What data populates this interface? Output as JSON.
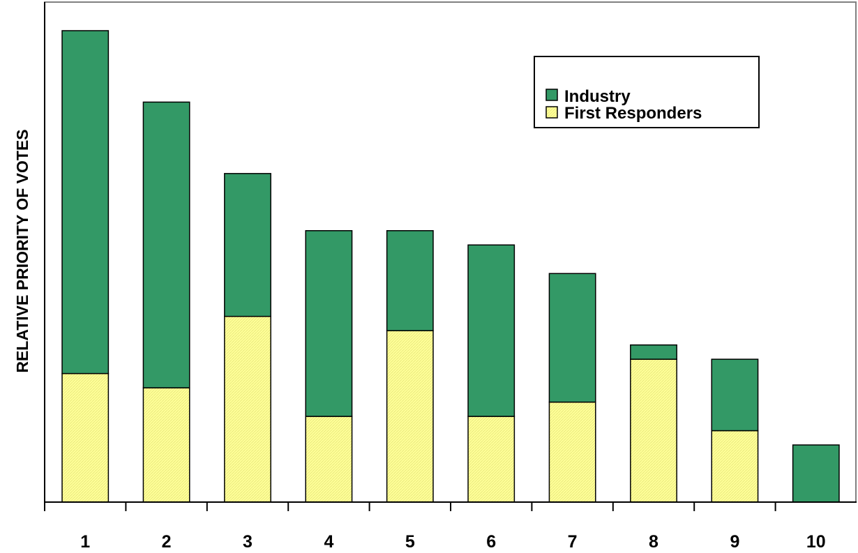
{
  "chart_data": {
    "type": "bar",
    "stacked": true,
    "title": "",
    "xlabel": "",
    "ylabel": "RELATIVE PRIORITY OF VOTES",
    "categories": [
      "1",
      "2",
      "3",
      "4",
      "5",
      "6",
      "7",
      "8",
      "9",
      "10"
    ],
    "series": [
      {
        "name": "First Responders",
        "color": "#ffff99",
        "values": [
          9,
          8,
          13,
          6,
          12,
          6,
          7,
          10,
          5,
          0
        ]
      },
      {
        "name": "Industry",
        "color": "#339966",
        "values": [
          24,
          20,
          10,
          13,
          7,
          12,
          9,
          1,
          5,
          4
        ]
      }
    ],
    "ylim": [
      0,
      35
    ],
    "y_ticks_shown": false,
    "grid": false,
    "legend": {
      "position": "top-right",
      "entries": [
        "Industry",
        "First Responders"
      ]
    }
  }
}
